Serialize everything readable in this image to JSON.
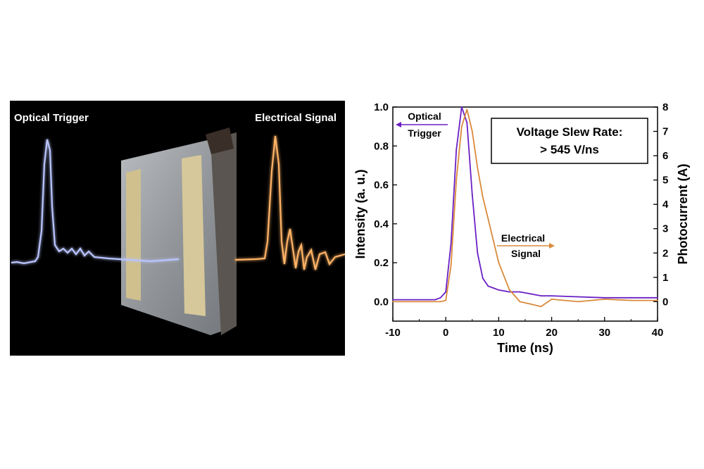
{
  "photo": {
    "left_label": "Optical Trigger",
    "right_label": "Electrical Signal",
    "optical_color": "#a6b4ff",
    "electrical_color": "#ffa64d"
  },
  "chart_data": {
    "type": "line",
    "x": [
      -10,
      -2,
      -1,
      0,
      1,
      2,
      3,
      4,
      5,
      6,
      7,
      8,
      9,
      10,
      12,
      14,
      16,
      18,
      20,
      25,
      30,
      35,
      40
    ],
    "xlim": [
      -10,
      40
    ],
    "xlabel": "Time (ns)",
    "xticks": [
      -10,
      0,
      10,
      20,
      30,
      40
    ],
    "left_axis": {
      "label": "Intensity (a. u.)",
      "ylim": [
        -0.1,
        1.0
      ],
      "ticks": [
        0.0,
        0.2,
        0.4,
        0.6,
        0.8,
        1.0
      ],
      "tick_labels": [
        "0.0",
        "0.2",
        "0.4",
        "0.6",
        "0.8",
        "1.0"
      ]
    },
    "right_axis": {
      "label": "Photocurrent (A)",
      "ylim": [
        -0.8,
        8
      ],
      "ticks": [
        0,
        1,
        2,
        3,
        4,
        5,
        6,
        7,
        8
      ],
      "tick_labels": [
        "0",
        "1",
        "2",
        "3",
        "4",
        "5",
        "6",
        "7",
        "8"
      ]
    },
    "series": [
      {
        "axis": "left",
        "color": "#6a1fc4",
        "values": [
          0.01,
          0.01,
          0.02,
          0.05,
          0.3,
          0.78,
          1.0,
          0.92,
          0.55,
          0.25,
          0.12,
          0.08,
          0.07,
          0.06,
          0.05,
          0.05,
          0.04,
          0.03,
          0.03,
          0.025,
          0.02,
          0.02,
          0.02
        ]
      },
      {
        "axis": "right",
        "color": "#d98a3a",
        "values": [
          0.0,
          0.0,
          0.0,
          0.05,
          1.5,
          5.0,
          7.2,
          7.9,
          7.0,
          5.5,
          4.3,
          3.4,
          2.5,
          1.6,
          0.5,
          0.0,
          -0.1,
          -0.2,
          0.1,
          0.0,
          0.1,
          0.05,
          0.05
        ]
      }
    ],
    "annotations": [
      {
        "line1": "Optical",
        "line2": "Trigger",
        "arrow": "left"
      },
      {
        "line1": "Electrical",
        "line2": "Signal",
        "arrow": "right"
      }
    ],
    "textbox": {
      "line1": "Voltage Slew Rate:",
      "line2": "> 545 V/ns"
    }
  }
}
